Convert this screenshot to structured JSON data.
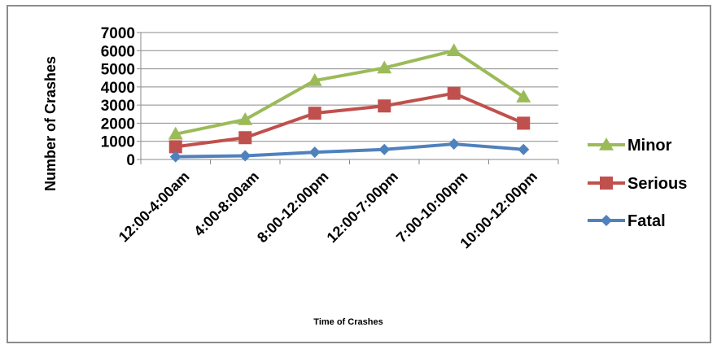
{
  "chart_data": {
    "type": "line",
    "title": "",
    "xlabel": "Time of Crashes",
    "ylabel": "Number of Crashes",
    "ylim": [
      0,
      7000
    ],
    "yticks": [
      0,
      1000,
      2000,
      3000,
      4000,
      5000,
      6000,
      7000
    ],
    "grid": true,
    "legend_position": "right",
    "categories": [
      "12:00-4:00am",
      "4:00-8:00am",
      "8:00-12:00pm",
      "12:00-7:00pm",
      "7:00-10:00pm",
      "10:00-12:00pm"
    ],
    "series": [
      {
        "name": "Minor",
        "marker": "triangle",
        "color": "#9bbb59",
        "values": [
          1400,
          2200,
          4350,
          5050,
          6000,
          3450
        ]
      },
      {
        "name": "Serious",
        "marker": "square",
        "color": "#c0504d",
        "values": [
          700,
          1200,
          2550,
          2950,
          3650,
          2000
        ]
      },
      {
        "name": "Fatal",
        "marker": "diamond",
        "color": "#4f81bd",
        "values": [
          150,
          200,
          400,
          550,
          850,
          550
        ]
      }
    ]
  }
}
